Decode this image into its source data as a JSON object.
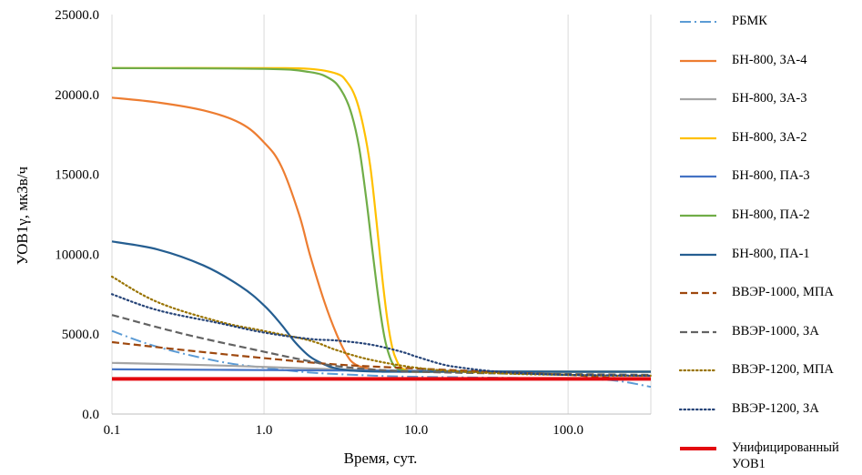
{
  "chart_data": {
    "type": "line",
    "xlabel": "Время, сут.",
    "ylabel": "УОВ1γ, мкЗв/ч",
    "x_scale": "log",
    "xlim": [
      0.1,
      350
    ],
    "ylim": [
      0,
      25000
    ],
    "x_ticks": [
      0.1,
      1,
      10,
      100
    ],
    "x_tick_labels": [
      "0.1",
      "1.0",
      "10.0",
      "100.0"
    ],
    "y_ticks": [
      0,
      5000,
      10000,
      15000,
      20000,
      25000
    ],
    "y_tick_labels": [
      "0.0",
      "5000.0",
      "10000.0",
      "15000.0",
      "20000.0",
      "25000.0"
    ],
    "grid": "vertical major gridlines",
    "legend_position": "right",
    "series": [
      {
        "name": "РБМК",
        "color": "#5B9BD5",
        "dash": "dashdot",
        "width": 2,
        "x": [
          0.1,
          0.2,
          0.5,
          1,
          2,
          4,
          8,
          20,
          50,
          100,
          200,
          350
        ],
        "y": [
          5200,
          4200,
          3300,
          2900,
          2600,
          2450,
          2350,
          2300,
          2250,
          2200,
          2100,
          1700
        ]
      },
      {
        "name": "БН-800, ЗА-4",
        "color": "#ED7D31",
        "dash": "solid",
        "width": 2.2,
        "x": [
          0.1,
          0.2,
          0.4,
          0.7,
          1.0,
          1.3,
          1.7,
          2.0,
          2.5,
          3.0,
          3.5,
          4.0,
          5.0,
          6.0,
          8.0,
          10.0,
          20,
          350
        ],
        "y": [
          19800,
          19500,
          19000,
          18200,
          17000,
          15500,
          12500,
          10000,
          7000,
          5000,
          3700,
          3100,
          2800,
          2700,
          2650,
          2650,
          2650,
          2650
        ]
      },
      {
        "name": "БН-800, ЗА-3",
        "color": "#A5A5A5",
        "dash": "solid",
        "width": 2.2,
        "x": [
          0.1,
          0.3,
          1,
          3,
          10,
          30,
          100,
          350
        ],
        "y": [
          3200,
          3100,
          2950,
          2800,
          2700,
          2650,
          2650,
          2650
        ]
      },
      {
        "name": "БН-800, ЗА-2",
        "color": "#FFC000",
        "dash": "solid",
        "width": 2.2,
        "x": [
          0.1,
          1,
          2,
          3,
          3.5,
          4,
          4.5,
          5,
          5.5,
          6,
          6.5,
          7,
          7.5,
          8,
          9,
          10,
          20,
          350
        ],
        "y": [
          21650,
          21650,
          21600,
          21300,
          20800,
          19800,
          18000,
          15500,
          12000,
          8500,
          5800,
          4100,
          3300,
          2900,
          2700,
          2650,
          2650,
          2650
        ]
      },
      {
        "name": "БН-800, ПА-3",
        "color": "#4472C4",
        "dash": "solid",
        "width": 2.2,
        "x": [
          0.1,
          1,
          10,
          100,
          350
        ],
        "y": [
          2800,
          2750,
          2700,
          2650,
          2650
        ]
      },
      {
        "name": "БН-800, ПА-2",
        "color": "#70AD47",
        "dash": "solid",
        "width": 2.2,
        "x": [
          0.1,
          1,
          2,
          2.7,
          3.2,
          3.7,
          4.2,
          4.7,
          5.2,
          5.7,
          6.2,
          6.7,
          7.2,
          8,
          9,
          10,
          20,
          350
        ],
        "y": [
          21650,
          21600,
          21400,
          21000,
          20300,
          19000,
          16800,
          13500,
          10000,
          7000,
          4800,
          3600,
          3000,
          2750,
          2650,
          2650,
          2650,
          2650
        ]
      },
      {
        "name": "БН-800, ПА-1",
        "color": "#255E91",
        "dash": "solid",
        "width": 2.2,
        "x": [
          0.1,
          0.2,
          0.4,
          0.7,
          1.0,
          1.3,
          1.6,
          2.0,
          2.5,
          3.0,
          4.0,
          6.0,
          10,
          30,
          350
        ],
        "y": [
          10800,
          10300,
          9300,
          8000,
          6800,
          5600,
          4500,
          3600,
          3100,
          2850,
          2700,
          2650,
          2650,
          2650,
          2650
        ]
      },
      {
        "name": "ВВЭР-1000, МПА",
        "color": "#9E480E",
        "dash": "dashed",
        "width": 2.2,
        "x": [
          0.1,
          0.3,
          1,
          3,
          10,
          30,
          100,
          200,
          350
        ],
        "y": [
          4500,
          4000,
          3500,
          3100,
          2850,
          2650,
          2450,
          2250,
          2200
        ]
      },
      {
        "name": "ВВЭР-1000, ЗА",
        "color": "#636363",
        "dash": "dashed",
        "width": 2.2,
        "x": [
          0.1,
          0.3,
          1,
          2,
          3,
          5,
          10,
          30,
          100,
          350
        ],
        "y": [
          6200,
          5000,
          3900,
          3300,
          3000,
          2800,
          2650,
          2550,
          2500,
          2450
        ]
      },
      {
        "name": "ВВЭР-1200, МПА",
        "color": "#997300",
        "dash": "dotted",
        "width": 2.2,
        "x": [
          0.1,
          0.2,
          0.5,
          1,
          2,
          3,
          5,
          10,
          20,
          50,
          100,
          200,
          350
        ],
        "y": [
          8600,
          7000,
          5800,
          5200,
          4600,
          4000,
          3400,
          2900,
          2650,
          2500,
          2450,
          2400,
          2400
        ]
      },
      {
        "name": "ВВЭР-1200, ЗА",
        "color": "#264478",
        "dash": "dotted",
        "width": 2.2,
        "x": [
          0.1,
          0.2,
          0.5,
          1,
          2,
          3,
          5,
          8,
          10,
          15,
          20,
          30,
          50,
          100,
          350
        ],
        "y": [
          7500,
          6500,
          5700,
          5100,
          4700,
          4600,
          4350,
          3900,
          3600,
          3100,
          2900,
          2700,
          2550,
          2450,
          2400
        ]
      },
      {
        "name": "Унифицированный УОВ1",
        "color": "#E3090F",
        "dash": "solid",
        "width": 4,
        "x": [
          0.1,
          350
        ],
        "y": [
          2200,
          2200
        ]
      }
    ]
  }
}
